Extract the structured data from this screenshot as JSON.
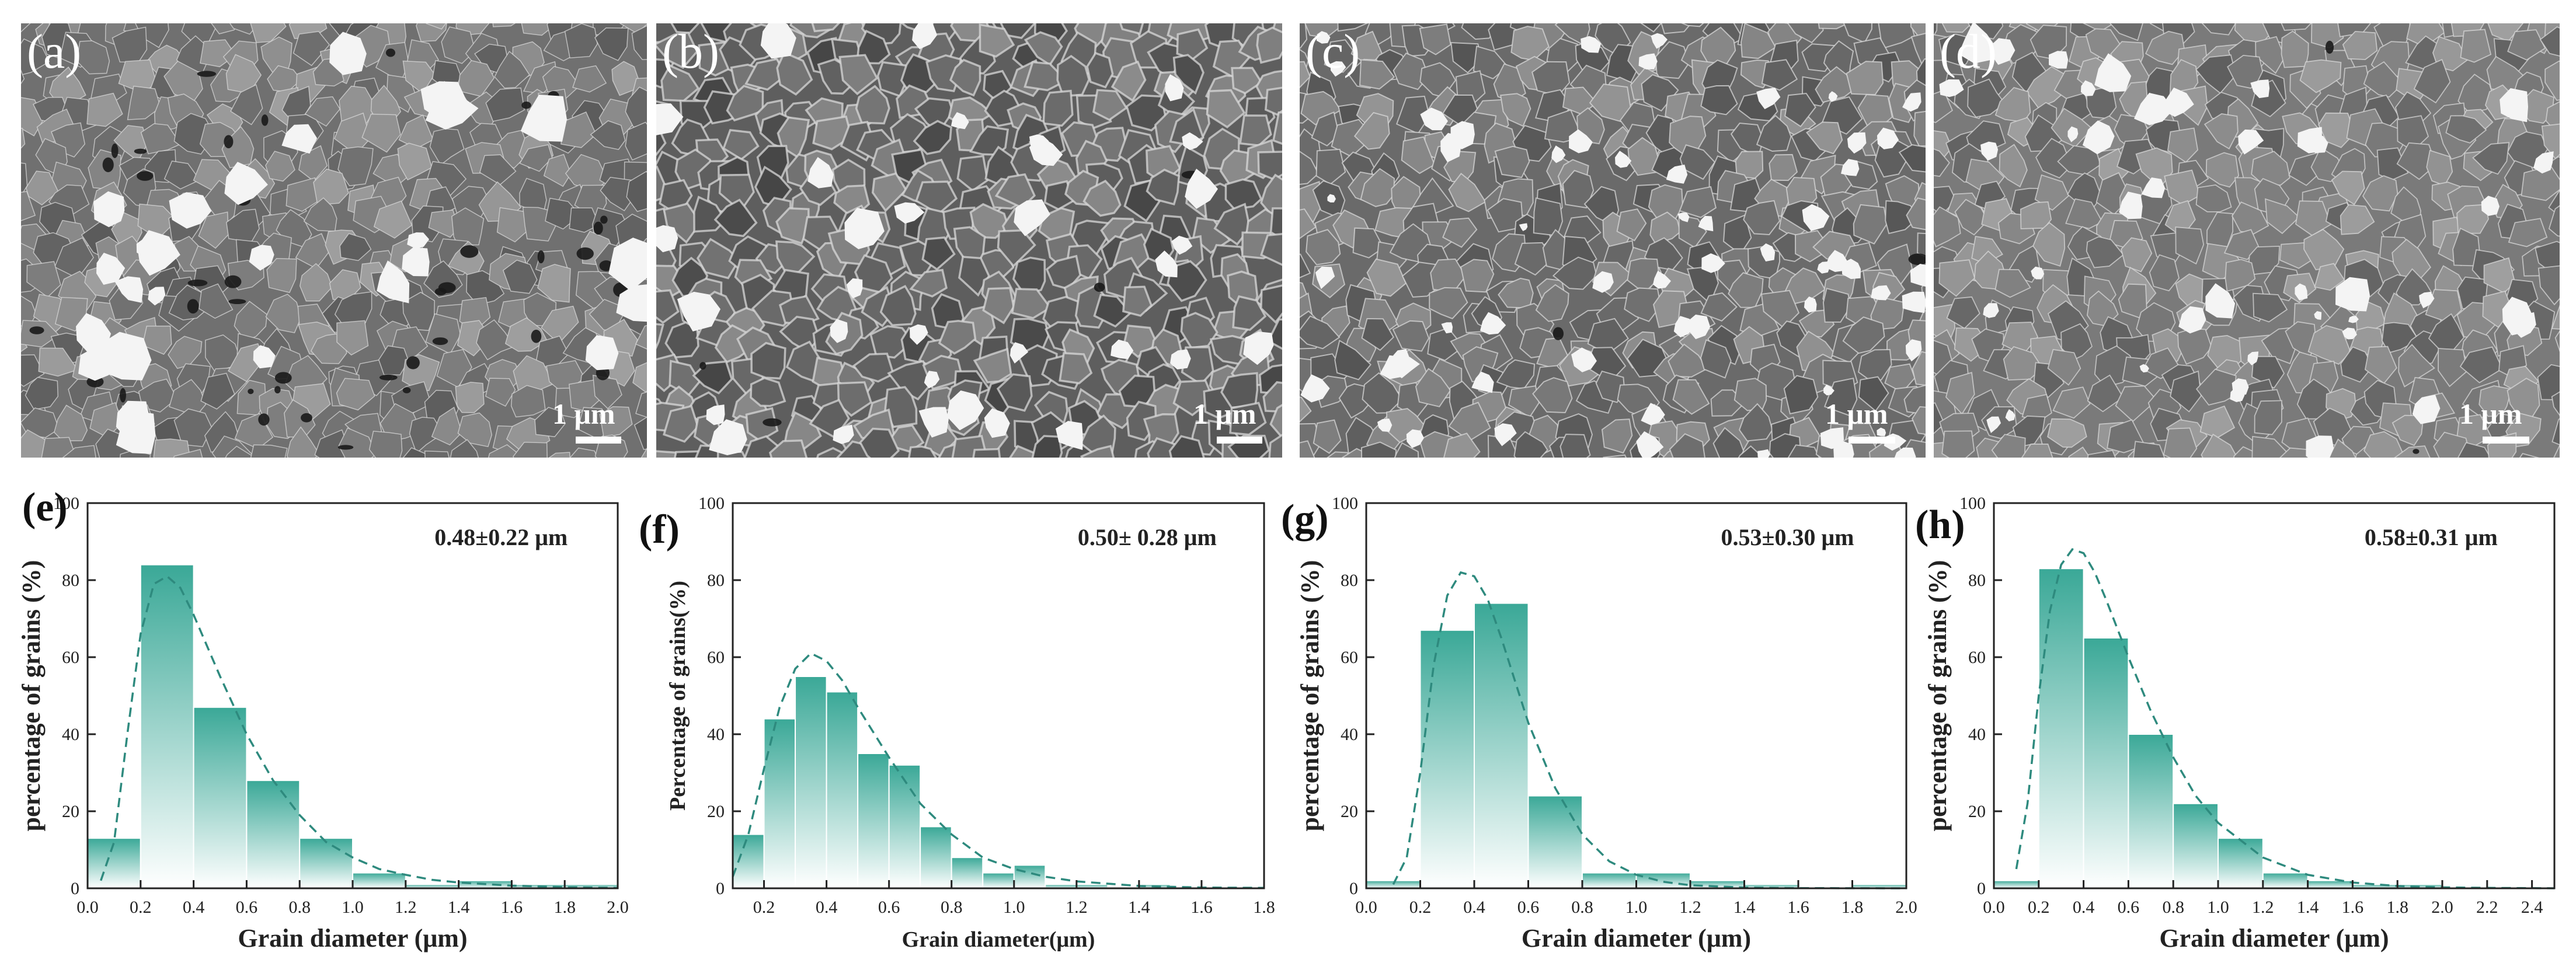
{
  "colors": {
    "bar_top": "#3aa897",
    "bar_bottom": "#ffffff",
    "fit_line": "#2e8a7e",
    "axis": "#222222",
    "sem_background": "#6f6f6f"
  },
  "micrographs": [
    {
      "letter": "(a)",
      "scale_label": "1 μm"
    },
    {
      "letter": "(b)",
      "scale_label": "1 μm"
    },
    {
      "letter": "(c)",
      "scale_label": "1 μm"
    },
    {
      "letter": "(d)",
      "scale_label": "1 μm"
    }
  ],
  "chart_data": [
    {
      "type": "bar",
      "panel": "(e)",
      "annotation": "0.48±0.22 μm",
      "xlabel": "Grain diameter (μm)",
      "ylabel": "percentage of grains (%)",
      "xlim": [
        0,
        2.0
      ],
      "ylim": [
        0,
        100
      ],
      "xticks": [
        "0.0",
        "0.2",
        "0.4",
        "0.6",
        "0.8",
        "1.0",
        "1.2",
        "1.4",
        "1.6",
        "1.8",
        "2.0"
      ],
      "yticks": [
        "0",
        "20",
        "40",
        "60",
        "80",
        "100"
      ],
      "bar_width": 0.2,
      "bars": [
        {
          "x": 0.1,
          "value": 13
        },
        {
          "x": 0.3,
          "value": 84
        },
        {
          "x": 0.5,
          "value": 47
        },
        {
          "x": 0.7,
          "value": 28
        },
        {
          "x": 0.9,
          "value": 13
        },
        {
          "x": 1.1,
          "value": 4
        },
        {
          "x": 1.3,
          "value": 1
        },
        {
          "x": 1.5,
          "value": 2
        },
        {
          "x": 1.7,
          "value": 1
        },
        {
          "x": 1.9,
          "value": 1
        }
      ],
      "fit": {
        "x": [
          0.05,
          0.1,
          0.15,
          0.2,
          0.25,
          0.3,
          0.35,
          0.4,
          0.5,
          0.6,
          0.7,
          0.8,
          0.9,
          1.0,
          1.1,
          1.2,
          1.3,
          1.4,
          1.6,
          1.8,
          2.0
        ],
        "y": [
          2,
          12,
          40,
          66,
          79,
          81,
          78,
          71,
          55,
          40,
          28,
          19,
          12,
          8,
          5,
          3.5,
          2.2,
          1.5,
          0.7,
          0.3,
          0.1
        ]
      }
    },
    {
      "type": "bar",
      "panel": "(f)",
      "annotation": "0.50± 0.28 μm",
      "xlabel": "Grain diameter(μm)",
      "ylabel": "Percentage of grains(%)",
      "xlim": [
        0.1,
        1.8
      ],
      "ylim": [
        0,
        100
      ],
      "xticks": [
        "0.2",
        "0.4",
        "0.6",
        "0.8",
        "1.0",
        "1.2",
        "1.4",
        "1.6",
        "1.8"
      ],
      "yticks": [
        "0",
        "20",
        "40",
        "60",
        "80",
        "100"
      ],
      "bar_width": 0.1,
      "bars": [
        {
          "x": 0.15,
          "value": 14
        },
        {
          "x": 0.25,
          "value": 44
        },
        {
          "x": 0.35,
          "value": 55
        },
        {
          "x": 0.45,
          "value": 51
        },
        {
          "x": 0.55,
          "value": 35
        },
        {
          "x": 0.65,
          "value": 32
        },
        {
          "x": 0.75,
          "value": 16
        },
        {
          "x": 0.85,
          "value": 8
        },
        {
          "x": 0.95,
          "value": 4
        },
        {
          "x": 1.05,
          "value": 6
        },
        {
          "x": 1.15,
          "value": 1
        },
        {
          "x": 1.25,
          "value": 1
        },
        {
          "x": 1.45,
          "value": 1
        }
      ],
      "fit": {
        "x": [
          0.1,
          0.15,
          0.2,
          0.25,
          0.3,
          0.35,
          0.4,
          0.45,
          0.5,
          0.6,
          0.7,
          0.8,
          0.9,
          1.0,
          1.1,
          1.2,
          1.4,
          1.6,
          1.8
        ],
        "y": [
          3,
          14,
          31,
          47,
          57,
          61,
          59,
          54,
          47,
          34,
          22,
          14,
          8,
          5,
          3,
          1.8,
          0.6,
          0.2,
          0.1
        ]
      }
    },
    {
      "type": "bar",
      "panel": "(g)",
      "annotation": "0.53±0.30 μm",
      "xlabel": "Grain diameter (μm)",
      "ylabel": "percentage of grains (%)",
      "xlim": [
        0,
        2.0
      ],
      "ylim": [
        0,
        100
      ],
      "xticks": [
        "0.0",
        "0.2",
        "0.4",
        "0.6",
        "0.8",
        "1.0",
        "1.2",
        "1.4",
        "1.6",
        "1.8",
        "2.0"
      ],
      "yticks": [
        "0",
        "20",
        "40",
        "60",
        "80",
        "100"
      ],
      "bar_width": 0.2,
      "bars": [
        {
          "x": 0.1,
          "value": 2
        },
        {
          "x": 0.3,
          "value": 67
        },
        {
          "x": 0.5,
          "value": 74
        },
        {
          "x": 0.7,
          "value": 24
        },
        {
          "x": 0.9,
          "value": 4
        },
        {
          "x": 1.1,
          "value": 4
        },
        {
          "x": 1.3,
          "value": 2
        },
        {
          "x": 1.5,
          "value": 1
        },
        {
          "x": 1.7,
          "value": 0
        },
        {
          "x": 1.9,
          "value": 1
        }
      ],
      "fit": {
        "x": [
          0.1,
          0.15,
          0.2,
          0.25,
          0.3,
          0.35,
          0.4,
          0.45,
          0.5,
          0.55,
          0.6,
          0.7,
          0.8,
          0.9,
          1.0,
          1.1,
          1.2,
          1.4,
          1.6,
          2.0
        ],
        "y": [
          1,
          8,
          30,
          58,
          76,
          82,
          81,
          75,
          65,
          54,
          43,
          26,
          14,
          7,
          3.5,
          1.7,
          0.8,
          0.2,
          0.05,
          0
        ]
      }
    },
    {
      "type": "bar",
      "panel": "(h)",
      "annotation": "0.58±0.31 μm",
      "xlabel": "Grain diameter (μm)",
      "ylabel": "percentage of grains (%)",
      "xlim": [
        0,
        2.5
      ],
      "ylim": [
        0,
        100
      ],
      "xticks": [
        "0.0",
        "0.2",
        "0.4",
        "0.6",
        "0.8",
        "1.0",
        "1.2",
        "1.4",
        "1.6",
        "1.8",
        "2.0",
        "2.2",
        "2.4"
      ],
      "yticks": [
        "0",
        "20",
        "40",
        "60",
        "80",
        "100"
      ],
      "bar_width": 0.2,
      "bars": [
        {
          "x": 0.1,
          "value": 2
        },
        {
          "x": 0.3,
          "value": 83
        },
        {
          "x": 0.5,
          "value": 65
        },
        {
          "x": 0.7,
          "value": 40
        },
        {
          "x": 0.9,
          "value": 22
        },
        {
          "x": 1.1,
          "value": 13
        },
        {
          "x": 1.3,
          "value": 4
        },
        {
          "x": 1.5,
          "value": 2
        },
        {
          "x": 1.7,
          "value": 1
        },
        {
          "x": 1.9,
          "value": 1
        }
      ],
      "fit": {
        "x": [
          0.1,
          0.15,
          0.2,
          0.25,
          0.3,
          0.35,
          0.4,
          0.45,
          0.5,
          0.6,
          0.7,
          0.8,
          0.9,
          1.0,
          1.2,
          1.4,
          1.6,
          1.8,
          2.0,
          2.2,
          2.5
        ],
        "y": [
          5,
          22,
          50,
          72,
          84,
          88,
          87,
          82,
          75,
          60,
          46,
          34,
          24,
          17,
          8,
          3.5,
          1.5,
          0.6,
          0.25,
          0.1,
          0
        ]
      }
    }
  ]
}
